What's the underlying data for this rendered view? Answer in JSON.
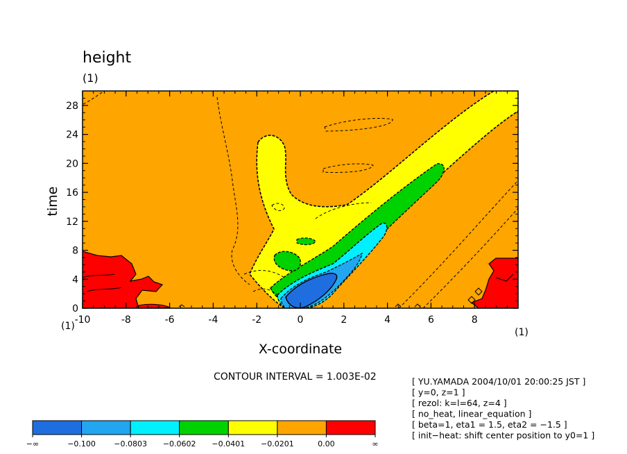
{
  "chart_data": {
    "type": "heatmap",
    "title": "height",
    "title_units": "(1)",
    "xlabel": "X-coordinate",
    "ylabel": "time",
    "x_units": "(1)",
    "y_units": "(1)",
    "xlim": [
      -10,
      10
    ],
    "ylim": [
      0,
      30
    ],
    "xticks": [
      "-10",
      "-8",
      "-6",
      "-4",
      "-2",
      "0",
      "2",
      "4",
      "6",
      "8"
    ],
    "yticks": [
      "0",
      "4",
      "8",
      "12",
      "16",
      "20",
      "24",
      "28"
    ],
    "contour_interval": "CONTOUR INTERVAL = 1.003E-02",
    "legend": {
      "labels": [
        "−∞",
        "−0.100",
        "−0.0803",
        "−0.0602",
        "−0.0401",
        "−0.0201",
        "0.00",
        "∞"
      ],
      "bands": [
        {
          "from": "−∞",
          "to": "−0.100",
          "color": "#1f6ee0"
        },
        {
          "from": "−0.100",
          "to": "−0.0803",
          "color": "#22a6f0"
        },
        {
          "from": "−0.0803",
          "to": "−0.0602",
          "color": "#00f0ff"
        },
        {
          "from": "−0.0602",
          "to": "−0.0401",
          "color": "#00d200"
        },
        {
          "from": "−0.0401",
          "to": "−0.0201",
          "color": "#ffff00"
        },
        {
          "from": "−0.0201",
          "to": "0.00",
          "color": "#ffa500"
        },
        {
          "from": "0.00",
          "to": "∞",
          "color": "#ff0000"
        }
      ]
    },
    "background_level_color": "#ffa500",
    "features": [
      {
        "name": "ridge-yellow",
        "level": "−0.0401 to −0.0201",
        "path": [
          [
            -1.8,
            22
          ],
          [
            -1.2,
            16
          ],
          [
            0.2,
            10
          ],
          [
            4,
            12
          ],
          [
            9.5,
            29
          ]
        ]
      },
      {
        "name": "band-green",
        "level": "−0.0602 to −0.0401",
        "path": [
          [
            -0.8,
            2
          ],
          [
            2,
            5
          ],
          [
            4,
            10
          ],
          [
            6.5,
            19
          ]
        ]
      },
      {
        "name": "band-cyan",
        "level": "−0.0803 to −0.0602",
        "path": [
          [
            0,
            1
          ],
          [
            2,
            4
          ],
          [
            3.5,
            11
          ]
        ]
      },
      {
        "name": "core-blue",
        "level": "−∞ to −0.100",
        "path": [
          [
            -0.5,
            0.5
          ],
          [
            1,
            3
          ],
          [
            2,
            5
          ]
        ]
      },
      {
        "name": "positive-red-left",
        "level": "0.00 to ∞",
        "region": [
          [
            -10,
            0
          ],
          [
            -8,
            7
          ]
        ]
      },
      {
        "name": "positive-red-right",
        "level": "0.00 to ∞",
        "region": [
          [
            8.5,
            0
          ],
          [
            10,
            7
          ]
        ]
      }
    ]
  },
  "info_lines": [
    "[ YU.YAMADA 2004/10/01 20:00:25 JST ]",
    "[ y=0, z=1 ]",
    "[ rezol: k=l=64, z=4 ]",
    "[ no_heat, linear_equation ]",
    "[ beta=1, eta1 = 1.5, eta2 = −1.5 ]",
    "[ init−heat: shift center position to y0=1 ]"
  ]
}
